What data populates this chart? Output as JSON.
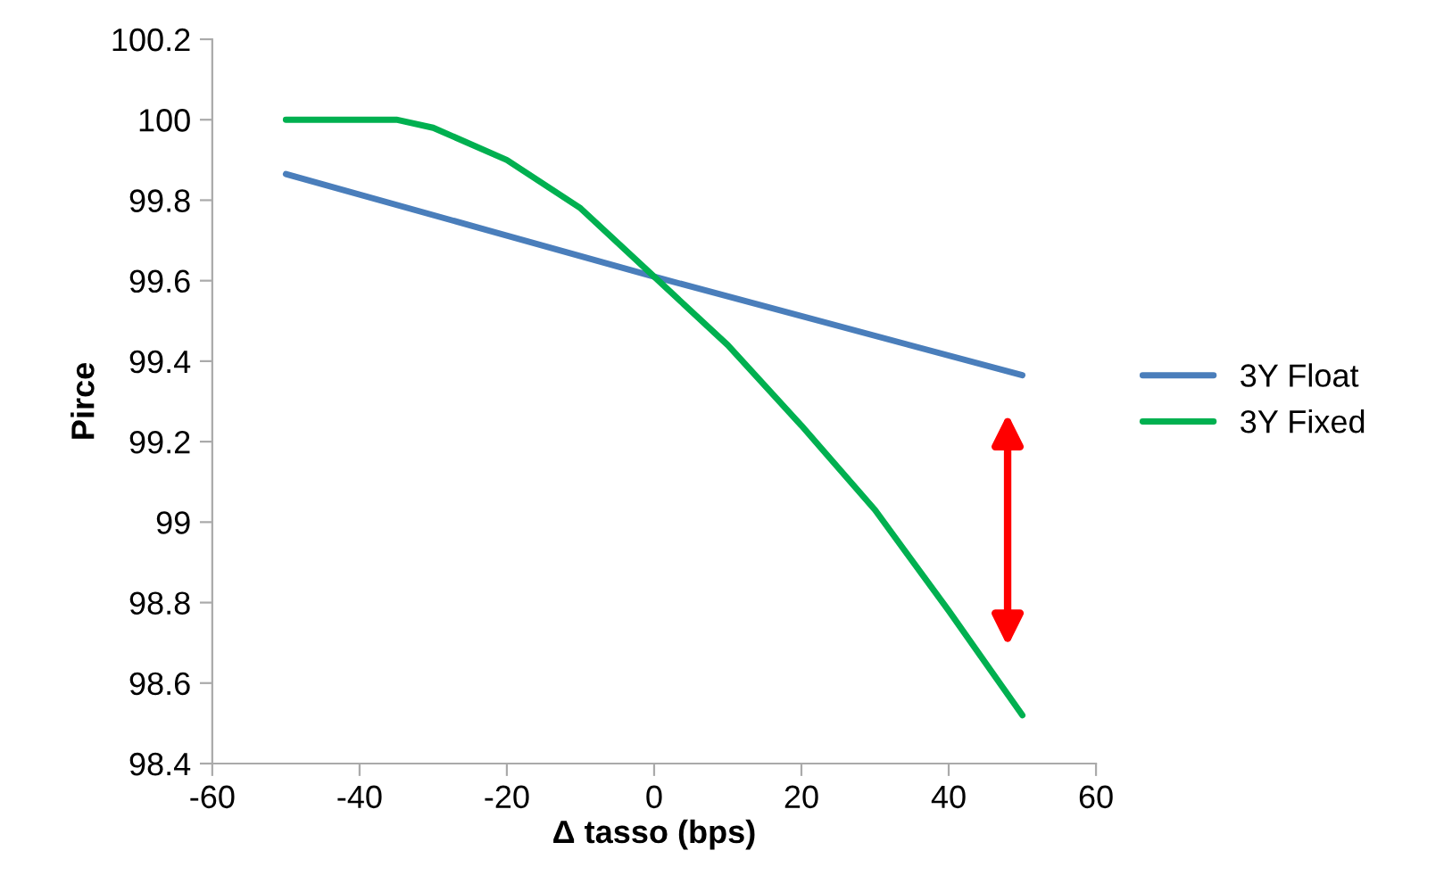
{
  "chart_data": {
    "type": "line",
    "xlabel": "Δ tasso (bps)",
    "ylabel": "Pirce",
    "x": [
      -50,
      -40,
      -35,
      -30,
      -20,
      -10,
      0,
      10,
      20,
      30,
      40,
      50
    ],
    "series": [
      {
        "name": "3Y Float",
        "color": "#4a7ebb",
        "x": [
          -50,
          0,
          50
        ],
        "values": [
          99.865,
          99.61,
          99.365
        ]
      },
      {
        "name": "3Y Fixed",
        "color": "#00b050",
        "values": [
          100,
          100,
          100,
          99.98,
          99.9,
          99.78,
          99.61,
          99.44,
          99.24,
          99.03,
          98.78,
          98.52
        ]
      }
    ],
    "xlim": [
      -60,
      60
    ],
    "xticks": [
      -60,
      -40,
      -20,
      0,
      20,
      40,
      60
    ],
    "ylim": [
      98.4,
      100.2
    ],
    "yticks": [
      98.4,
      98.6,
      98.8,
      99,
      99.2,
      99.4,
      99.6,
      99.8,
      100,
      100.2
    ],
    "grid": false,
    "legend": "right",
    "marker": "none",
    "line_style": "solid"
  }
}
